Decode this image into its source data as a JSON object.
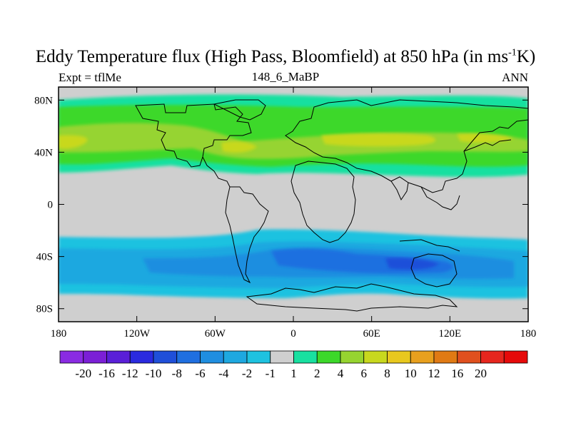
{
  "title": {
    "main": "Eddy Temperature flux (High Pass, Bloomfield) at 850 hPa (in ms",
    "sup": "-1",
    "tail": "K)"
  },
  "left_label": "Expt = tflMe",
  "center_label": "148_6_MaBP",
  "right_label": "ANN",
  "lat_ticks": [
    {
      "label": "80N",
      "lat": 80
    },
    {
      "label": "40N",
      "lat": 40
    },
    {
      "label": "0",
      "lat": 0
    },
    {
      "label": "40S",
      "lat": -40
    },
    {
      "label": "80S",
      "lat": -80
    }
  ],
  "lon_ticks": [
    {
      "label": "180",
      "lon": -180
    },
    {
      "label": "120W",
      "lon": -120
    },
    {
      "label": "60W",
      "lon": -60
    },
    {
      "label": "0",
      "lon": 0
    },
    {
      "label": "60E",
      "lon": 60
    },
    {
      "label": "120E",
      "lon": 120
    },
    {
      "label": "180",
      "lon": 180
    }
  ],
  "colorbar": {
    "colors": [
      "#8a2be2",
      "#7b1fd6",
      "#5a1fd8",
      "#2a2adf",
      "#1f4fd9",
      "#1f6fe0",
      "#1f8ee0",
      "#1ea8e0",
      "#1ec2e0",
      "#cfcfcf",
      "#19e0a0",
      "#3cd82a",
      "#96d430",
      "#c8d81e",
      "#e8c81e",
      "#e8a01e",
      "#e07a14",
      "#e0501e",
      "#e6261e",
      "#e60a0a"
    ],
    "labels": [
      "-20",
      "-16",
      "-12",
      "-10",
      "-8",
      "-6",
      "-4",
      "-2",
      "-1",
      "1",
      "2",
      "4",
      "6",
      "8",
      "10",
      "12",
      "16",
      "20"
    ]
  },
  "field_colors": {
    "background": "#cfcfcf",
    "green_pale": "#19e0a0",
    "green": "#3cd82a",
    "yellow_green": "#96d430",
    "yellow": "#c8d81e",
    "cyan": "#1ec2e0",
    "light_blue": "#1ea8e0",
    "blue": "#1f8ee0",
    "deep_blue": "#1f6fe0",
    "darker_blue": "#1f4fd9"
  }
}
